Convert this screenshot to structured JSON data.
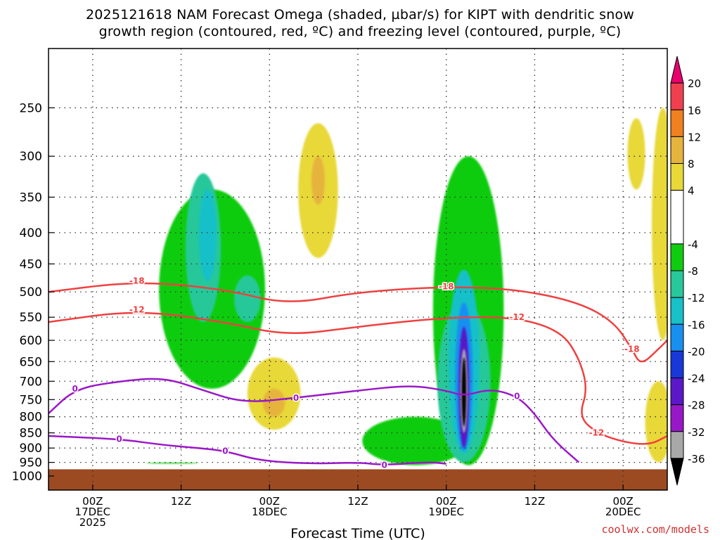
{
  "title_line1": "2025121618 NAM Forecast Omega (shaded, µbar/s) for KIPT with dendritic snow",
  "title_line2": "growth region (contoured, red, ºC) and freezing level (contoured, purple, ºC)",
  "credit": "coolwx.com/models",
  "chart_data": {
    "type": "time-height cross section (filled contour)",
    "title": "2025121618 NAM Forecast Omega (shaded, µbar/s) for KIPT with dendritic snow growth region (contoured, red, ºC) and freezing level (contoured, purple, ºC)",
    "xlabel": "Forecast Time (UTC)",
    "ylabel": "",
    "x_range_hours": [
      -5,
      65
    ],
    "x_ticks": [
      {
        "hour": 0,
        "label": "00Z",
        "sub1": "17DEC",
        "sub2": "2025"
      },
      {
        "hour": 10,
        "label": "12Z",
        "sub1": "",
        "sub2": ""
      },
      {
        "hour": 20,
        "label": "00Z",
        "sub1": "18DEC",
        "sub2": ""
      },
      {
        "hour": 30,
        "label": "12Z",
        "sub1": "",
        "sub2": ""
      },
      {
        "hour": 40,
        "label": "00Z",
        "sub1": "19DEC",
        "sub2": ""
      },
      {
        "hour": 50,
        "label": "12Z",
        "sub1": "",
        "sub2": ""
      },
      {
        "hour": 60,
        "label": "00Z",
        "sub1": "20DEC",
        "sub2": ""
      }
    ],
    "y_axis": "pressure (hPa), log scale",
    "y_range": [
      200,
      1000
    ],
    "y_ticks": [
      250,
      300,
      350,
      400,
      450,
      500,
      550,
      600,
      650,
      700,
      750,
      800,
      850,
      900,
      950,
      1000
    ],
    "colorbar": {
      "label_values": [
        20,
        16,
        12,
        8,
        4,
        -4,
        -8,
        -12,
        -16,
        -20,
        -24,
        -28,
        -32,
        -36
      ],
      "bands": [
        {
          "from": 20,
          "to": 24,
          "color": "#e8006e"
        },
        {
          "from": 16,
          "to": 20,
          "color": "#f04050"
        },
        {
          "from": 12,
          "to": 16,
          "color": "#f08020"
        },
        {
          "from": 8,
          "to": 12,
          "color": "#e6b43c"
        },
        {
          "from": 4,
          "to": 8,
          "color": "#e8d838"
        },
        {
          "from": -4,
          "to": 4,
          "color": "#ffffff"
        },
        {
          "from": -8,
          "to": -4,
          "color": "#10cc10"
        },
        {
          "from": -12,
          "to": -8,
          "color": "#28c89a"
        },
        {
          "from": -16,
          "to": -12,
          "color": "#18c0c8"
        },
        {
          "from": -20,
          "to": -16,
          "color": "#1890f0"
        },
        {
          "from": -24,
          "to": -20,
          "color": "#1838d8"
        },
        {
          "from": -28,
          "to": -24,
          "color": "#5a18c8"
        },
        {
          "from": -32,
          "to": -28,
          "color": "#9818c8"
        },
        {
          "from": -36,
          "to": -32,
          "color": "#a8a8a8"
        },
        {
          "from": -40,
          "to": -36,
          "color": "#000000"
        }
      ]
    },
    "terrain_color": "#9c4a22",
    "omega_regions": [
      {
        "h": 9,
        "p1": 950,
        "p2": 955,
        "w": 6,
        "color": "#10cc10"
      },
      {
        "h": 13.5,
        "p1": 340,
        "p2": 720,
        "w": 12,
        "color": "#10cc10"
      },
      {
        "h": 12.5,
        "p1": 320,
        "p2": 560,
        "w": 4,
        "color": "#28c89a"
      },
      {
        "h": 13,
        "p1": 340,
        "p2": 480,
        "w": 2,
        "color": "#18c0c8"
      },
      {
        "h": 17.5,
        "p1": 470,
        "p2": 560,
        "w": 3,
        "color": "#28c89a"
      },
      {
        "h": 20.5,
        "p1": 640,
        "p2": 840,
        "w": 6,
        "color": "#e8d838"
      },
      {
        "h": 20.5,
        "p1": 720,
        "p2": 800,
        "w": 2.5,
        "color": "#e6b43c"
      },
      {
        "h": 25.5,
        "p1": 265,
        "p2": 440,
        "w": 4.5,
        "color": "#e8d838"
      },
      {
        "h": 25.5,
        "p1": 300,
        "p2": 360,
        "w": 1.5,
        "color": "#e6b43c"
      },
      {
        "h": 42.5,
        "p1": 300,
        "p2": 960,
        "w": 8,
        "color": "#10cc10"
      },
      {
        "h": 36.5,
        "p1": 800,
        "p2": 960,
        "w": 12,
        "color": "#10cc10"
      },
      {
        "h": 42,
        "p1": 520,
        "p2": 950,
        "w": 6,
        "color": "#28c89a"
      },
      {
        "h": 42,
        "p1": 460,
        "p2": 920,
        "w": 3.5,
        "color": "#18c0c8"
      },
      {
        "h": 42,
        "p1": 520,
        "p2": 910,
        "w": 2,
        "color": "#1890f0"
      },
      {
        "h": 42,
        "p1": 570,
        "p2": 900,
        "w": 1.2,
        "color": "#5a18c8"
      },
      {
        "h": 42,
        "p1": 620,
        "p2": 850,
        "w": 0.8,
        "color": "#a8a8a8"
      },
      {
        "h": 42,
        "p1": 640,
        "p2": 830,
        "w": 0.5,
        "color": "#000000"
      },
      {
        "h": 61.5,
        "p1": 260,
        "p2": 340,
        "w": 2,
        "color": "#e8d838"
      },
      {
        "h": 64.5,
        "p1": 250,
        "p2": 600,
        "w": 2.5,
        "color": "#e8d838"
      },
      {
        "h": 64,
        "p1": 700,
        "p2": 950,
        "w": 3,
        "color": "#e8d838"
      }
    ],
    "dgz_contours": [
      {
        "label": "-18",
        "color": "#f04040",
        "points": [
          [
            -5,
            500
          ],
          [
            5,
            480
          ],
          [
            15,
            495
          ],
          [
            22,
            525
          ],
          [
            30,
            500
          ],
          [
            40,
            490
          ],
          [
            48,
            495
          ],
          [
            55,
            520
          ],
          [
            59,
            560
          ],
          [
            61,
            620
          ],
          [
            62,
            660
          ],
          [
            64,
            620
          ],
          [
            65,
            600
          ]
        ]
      },
      {
        "label": "-12",
        "color": "#f04040",
        "points": [
          [
            -5,
            560
          ],
          [
            5,
            535
          ],
          [
            15,
            560
          ],
          [
            22,
            590
          ],
          [
            30,
            570
          ],
          [
            40,
            550
          ],
          [
            48,
            550
          ],
          [
            53,
            580
          ],
          [
            55,
            640
          ],
          [
            56,
            720
          ],
          [
            55,
            800
          ],
          [
            57,
            850
          ],
          [
            60,
            880
          ],
          [
            63,
            890
          ],
          [
            65,
            860
          ]
        ]
      }
    ],
    "freezing_contours": [
      {
        "label": "0",
        "color": "#9a18c8",
        "points": [
          [
            -5,
            790
          ],
          [
            -2,
            720
          ],
          [
            3,
            700
          ],
          [
            8,
            690
          ],
          [
            12,
            720
          ],
          [
            17,
            760
          ],
          [
            23,
            745
          ],
          [
            30,
            725
          ],
          [
            36,
            710
          ],
          [
            40,
            725
          ],
          [
            42,
            740
          ],
          [
            45,
            720
          ],
          [
            48,
            740
          ],
          [
            50,
            790
          ],
          [
            52,
            870
          ],
          [
            55,
            950
          ]
        ]
      },
      {
        "label": "0",
        "color": "#9a18c8",
        "points": [
          [
            -5,
            860
          ],
          [
            3,
            870
          ],
          [
            8,
            890
          ],
          [
            12,
            900
          ],
          [
            15,
            910
          ],
          [
            19,
            945
          ],
          [
            25,
            955
          ],
          [
            30,
            950
          ],
          [
            33,
            960
          ],
          [
            38,
            948
          ],
          [
            40,
            955
          ]
        ]
      }
    ]
  }
}
